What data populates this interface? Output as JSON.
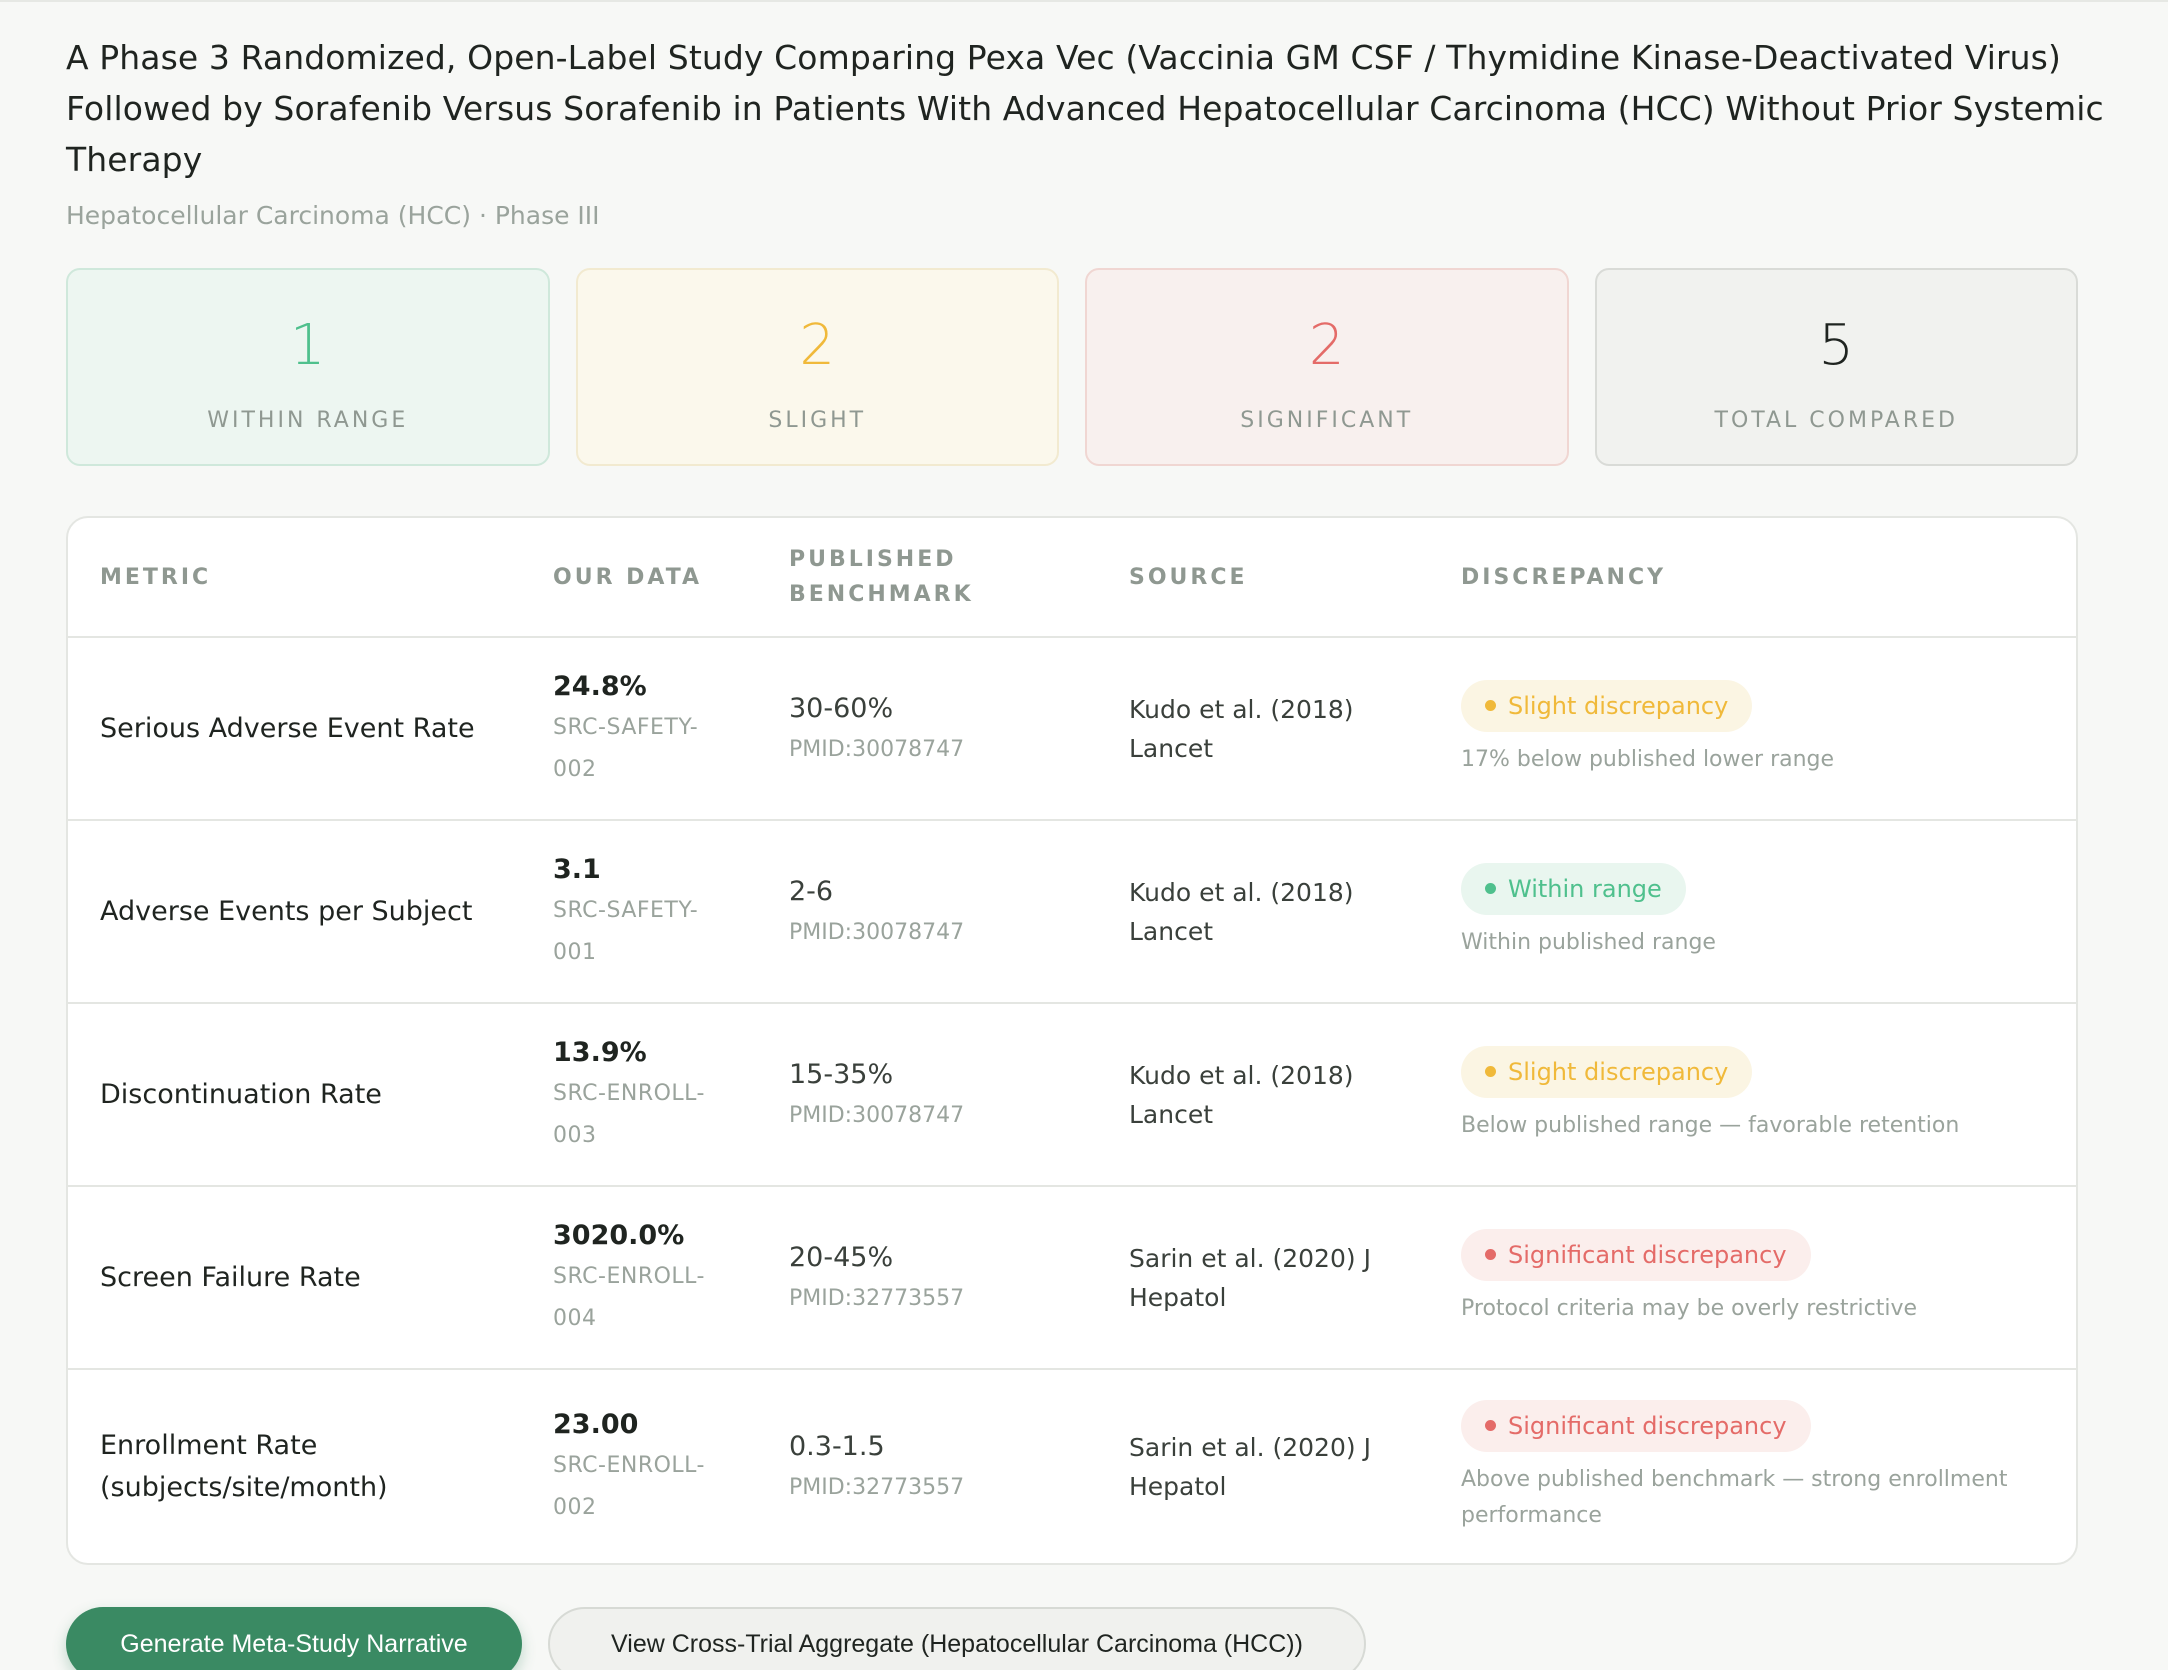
{
  "header": {
    "title": "A Phase 3 Randomized, Open-Label Study Comparing Pexa Vec (Vaccinia GM CSF / Thymidine Kinase-Deactivated Virus) Followed by Sorafenib Versus Sorafenib in Patients With Advanced Hepatocellular Carcinoma (HCC) Without Prior Systemic Therapy",
    "subtitle": "Hepatocellular Carcinoma (HCC) · Phase III"
  },
  "stats": [
    {
      "value": "1",
      "label": "WITHIN RANGE",
      "color": "#4fc08d"
    },
    {
      "value": "2",
      "label": "SLIGHT",
      "color": "#f0b93a"
    },
    {
      "value": "2",
      "label": "SIGNIFICANT",
      "color": "#e46b68"
    },
    {
      "value": "5",
      "label": "TOTAL COMPARED",
      "color": "#1f2420"
    }
  ],
  "table": {
    "headers": {
      "metric": "METRIC",
      "our_data": "OUR DATA",
      "benchmark": "PUBLISHED BENCHMARK",
      "source": "SOURCE",
      "discrepancy": "DISCREPANCY"
    },
    "rows": [
      {
        "metric": "Serious Adverse Event Rate",
        "our_value": "24.8%",
        "our_source": "SRC-SAFETY-002",
        "benchmark": "30-60%",
        "pmid": "PMID:30078747",
        "source": "Kudo et al. (2018) Lancet",
        "status": "Slight discrepancy",
        "note": "17% below published lower range"
      },
      {
        "metric": "Adverse Events per Subject",
        "our_value": "3.1",
        "our_source": "SRC-SAFETY-001",
        "benchmark": "2-6",
        "pmid": "PMID:30078747",
        "source": "Kudo et al. (2018) Lancet",
        "status": "Within range",
        "note": "Within published range"
      },
      {
        "metric": "Discontinuation Rate",
        "our_value": "13.9%",
        "our_source": "SRC-ENROLL-003",
        "benchmark": "15-35%",
        "pmid": "PMID:30078747",
        "source": "Kudo et al. (2018) Lancet",
        "status": "Slight discrepancy",
        "note": "Below published range — favorable retention"
      },
      {
        "metric": "Screen Failure Rate",
        "our_value": "3020.0%",
        "our_source": "SRC-ENROLL-004",
        "benchmark": "20-45%",
        "pmid": "PMID:32773557",
        "source": "Sarin et al. (2020) J Hepatol",
        "status": "Significant discrepancy",
        "note": "Protocol criteria may be overly restrictive"
      },
      {
        "metric": "Enrollment Rate (subjects/site/month)",
        "our_value": "23.00",
        "our_source": "SRC-ENROLL-002",
        "benchmark": "0.3-1.5",
        "pmid": "PMID:32773557",
        "source": "Sarin et al. (2020) J Hepatol",
        "status": "Significant discrepancy",
        "note": "Above published benchmark — strong enrollment performance"
      }
    ]
  },
  "actions": {
    "generate_label": "Generate Meta-Study Narrative",
    "aggregate_label": "View Cross-Trial Aggregate (Hepatocellular Carcinoma (HCC))"
  }
}
